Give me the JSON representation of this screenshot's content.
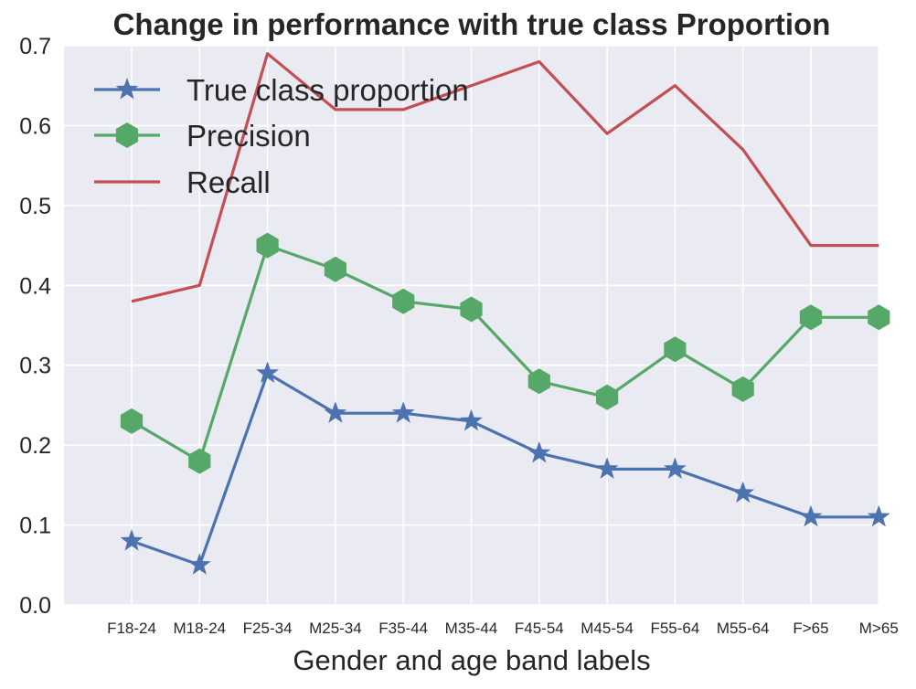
{
  "chart_data": {
    "type": "line",
    "title": "Change in performance with true class Proportion",
    "xlabel": "Gender and age band labels",
    "ylabel": "",
    "categories": [
      "F18-24",
      "M18-24",
      "F25-34",
      "M25-34",
      "F35-44",
      "M35-44",
      "F45-54",
      "M45-54",
      "F55-64",
      "M55-64",
      "F>65",
      "M>65"
    ],
    "ylim": [
      0.0,
      0.7
    ],
    "yticks": [
      "0.0",
      "0.1",
      "0.2",
      "0.3",
      "0.4",
      "0.5",
      "0.6",
      "0.7"
    ],
    "grid": true,
    "legend_position": "top-left",
    "series": [
      {
        "name": "True class proportion",
        "marker": "star",
        "color": "#4C72B0",
        "values": [
          0.08,
          0.05,
          0.29,
          0.24,
          0.24,
          0.23,
          0.19,
          0.17,
          0.17,
          0.14,
          0.11,
          0.11
        ]
      },
      {
        "name": "Precision",
        "marker": "hexagon",
        "color": "#55A868",
        "values": [
          0.23,
          0.18,
          0.45,
          0.42,
          0.38,
          0.37,
          0.28,
          0.26,
          0.32,
          0.27,
          0.36,
          0.36
        ]
      },
      {
        "name": "Recall",
        "marker": "none",
        "color": "#C44E52",
        "values": [
          0.38,
          0.4,
          0.69,
          0.62,
          0.62,
          0.65,
          0.68,
          0.59,
          0.65,
          0.57,
          0.45,
          0.45
        ]
      }
    ]
  }
}
